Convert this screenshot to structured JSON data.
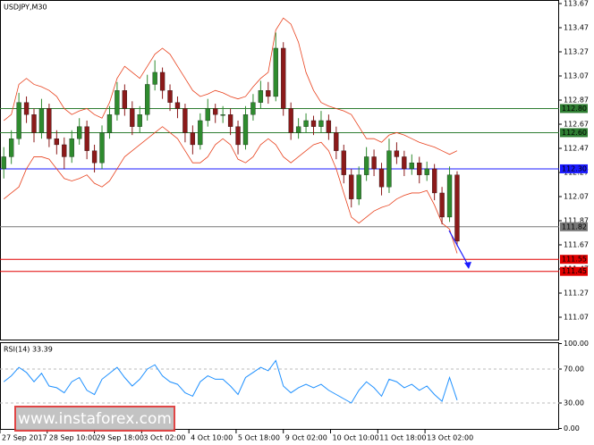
{
  "chart_data": {
    "type": "candlestick",
    "title": "USDJPY,M30",
    "up_color": "#2e8b2e",
    "down_color": "#8b1a1a",
    "band_color": "#e8401c",
    "xlim": [
      0,
      74
    ],
    "xticks": [
      {
        "value": 0,
        "label": "27 Sep 2017"
      },
      {
        "value": 6.25,
        "label": "28 Sep 10:00"
      },
      {
        "value": 12.5,
        "label": "29 Sep 18:00"
      },
      {
        "value": 18.75,
        "label": "3 Oct 02:00"
      },
      {
        "value": 25,
        "label": "4 Oct 10:00"
      },
      {
        "value": 31.25,
        "label": "5 Oct 18:00"
      },
      {
        "value": 37.5,
        "label": "9 Oct 02:00"
      },
      {
        "value": 43.75,
        "label": "10 Oct 10:00"
      },
      {
        "value": 50,
        "label": "11 Oct 18:00"
      },
      {
        "value": 56.25,
        "label": "13 Oct 02:00"
      }
    ],
    "ylim": [
      111.07,
      113.67
    ],
    "yticks": [
      113.67,
      113.47,
      113.27,
      113.07,
      112.87,
      112.67,
      112.47,
      112.27,
      112.07,
      111.87,
      111.67,
      111.47,
      111.27,
      111.07
    ],
    "levels": [
      {
        "value": 112.8,
        "label": "112.80",
        "color": "#2e7d32"
      },
      {
        "value": 112.6,
        "label": "112.60",
        "color": "#2e7d32"
      },
      {
        "value": 112.3,
        "label": "112.30",
        "color": "#1a1aff"
      },
      {
        "value": 111.82,
        "label": "111.82",
        "color": "#777777"
      },
      {
        "value": 111.55,
        "label": "111.55",
        "color": "#e00000"
      },
      {
        "value": 111.45,
        "label": "111.45",
        "color": "#e00000"
      }
    ],
    "candles": [
      [
        112.3,
        112.48,
        112.22,
        112.4
      ],
      [
        112.4,
        112.62,
        112.34,
        112.55
      ],
      [
        112.55,
        112.93,
        112.5,
        112.85
      ],
      [
        112.85,
        112.9,
        112.68,
        112.75
      ],
      [
        112.75,
        112.8,
        112.52,
        112.6
      ],
      [
        112.6,
        112.88,
        112.55,
        112.8
      ],
      [
        112.8,
        112.84,
        112.48,
        112.55
      ],
      [
        112.55,
        112.62,
        112.42,
        112.5
      ],
      [
        112.5,
        112.56,
        112.3,
        112.4
      ],
      [
        112.4,
        112.62,
        112.35,
        112.55
      ],
      [
        112.55,
        112.72,
        112.5,
        112.65
      ],
      [
        112.65,
        112.7,
        112.38,
        112.45
      ],
      [
        112.45,
        112.5,
        112.27,
        112.35
      ],
      [
        112.35,
        112.66,
        112.3,
        112.6
      ],
      [
        112.6,
        112.82,
        112.55,
        112.75
      ],
      [
        112.75,
        113.02,
        112.7,
        112.95
      ],
      [
        112.95,
        113.0,
        112.74,
        112.8
      ],
      [
        112.8,
        112.86,
        112.58,
        112.65
      ],
      [
        112.65,
        112.82,
        112.6,
        112.75
      ],
      [
        112.75,
        113.08,
        112.7,
        113.0
      ],
      [
        113.0,
        113.2,
        112.95,
        113.1
      ],
      [
        113.1,
        113.14,
        112.88,
        112.95
      ],
      [
        112.95,
        113.0,
        112.78,
        112.85
      ],
      [
        112.85,
        112.9,
        112.72,
        112.8
      ],
      [
        112.8,
        112.84,
        112.52,
        112.6
      ],
      [
        112.6,
        112.66,
        112.42,
        112.5
      ],
      [
        112.5,
        112.76,
        112.46,
        112.7
      ],
      [
        112.7,
        112.88,
        112.65,
        112.8
      ],
      [
        112.8,
        112.84,
        112.68,
        112.75
      ],
      [
        112.75,
        112.82,
        112.68,
        112.75
      ],
      [
        112.75,
        112.8,
        112.58,
        112.65
      ],
      [
        112.65,
        112.7,
        112.42,
        112.5
      ],
      [
        112.5,
        112.82,
        112.46,
        112.75
      ],
      [
        112.75,
        112.92,
        112.7,
        112.85
      ],
      [
        112.85,
        113.03,
        112.8,
        112.95
      ],
      [
        112.95,
        113.02,
        112.84,
        112.9
      ],
      [
        112.9,
        113.43,
        112.86,
        113.3
      ],
      [
        113.3,
        113.35,
        112.74,
        112.8
      ],
      [
        112.8,
        112.85,
        112.54,
        112.6
      ],
      [
        112.6,
        112.72,
        112.55,
        112.65
      ],
      [
        112.65,
        112.76,
        112.6,
        112.7
      ],
      [
        112.7,
        112.74,
        112.58,
        112.65
      ],
      [
        112.65,
        112.78,
        112.6,
        112.7
      ],
      [
        112.7,
        112.75,
        112.54,
        112.6
      ],
      [
        112.6,
        112.65,
        112.38,
        112.45
      ],
      [
        112.45,
        112.5,
        112.18,
        112.25
      ],
      [
        112.25,
        112.3,
        111.98,
        112.05
      ],
      [
        112.05,
        112.32,
        112.0,
        112.25
      ],
      [
        112.25,
        112.48,
        112.2,
        112.4
      ],
      [
        112.4,
        112.46,
        112.24,
        112.3
      ],
      [
        112.3,
        112.35,
        112.08,
        112.15
      ],
      [
        112.15,
        112.55,
        112.1,
        112.45
      ],
      [
        112.45,
        112.52,
        112.34,
        112.4
      ],
      [
        112.4,
        112.45,
        112.24,
        112.3
      ],
      [
        112.3,
        112.42,
        112.25,
        112.35
      ],
      [
        112.35,
        112.4,
        112.18,
        112.25
      ],
      [
        112.25,
        112.36,
        112.2,
        112.3
      ],
      [
        112.3,
        112.34,
        112.04,
        112.1
      ],
      [
        112.1,
        112.15,
        111.84,
        111.9
      ],
      [
        111.9,
        112.32,
        111.86,
        112.25
      ],
      [
        112.25,
        112.28,
        111.66,
        111.7
      ]
    ],
    "bollinger_upper": [
      112.7,
      112.75,
      113.0,
      113.05,
      113.0,
      112.98,
      112.95,
      112.9,
      112.8,
      112.75,
      112.78,
      112.8,
      112.75,
      112.72,
      112.85,
      113.05,
      113.15,
      113.1,
      113.05,
      113.15,
      113.25,
      113.3,
      113.25,
      113.15,
      113.05,
      112.95,
      112.9,
      112.92,
      112.95,
      112.93,
      112.9,
      112.88,
      112.9,
      112.98,
      113.05,
      113.1,
      113.45,
      113.55,
      113.5,
      113.35,
      113.1,
      112.95,
      112.85,
      112.82,
      112.8,
      112.78,
      112.75,
      112.65,
      112.55,
      112.55,
      112.52,
      112.58,
      112.6,
      112.58,
      112.55,
      112.52,
      112.5,
      112.48,
      112.45,
      112.42,
      112.45
    ],
    "bollinger_lower": [
      112.05,
      112.1,
      112.15,
      112.3,
      112.4,
      112.4,
      112.38,
      112.3,
      112.22,
      112.2,
      112.22,
      112.25,
      112.18,
      112.15,
      112.2,
      112.3,
      112.4,
      112.45,
      112.5,
      112.55,
      112.6,
      112.65,
      112.6,
      112.55,
      112.45,
      112.35,
      112.35,
      112.4,
      112.5,
      112.55,
      112.5,
      112.38,
      112.35,
      112.4,
      112.5,
      112.55,
      112.5,
      112.4,
      112.35,
      112.4,
      112.45,
      112.5,
      112.52,
      112.45,
      112.3,
      112.1,
      111.9,
      111.85,
      111.9,
      111.95,
      111.98,
      112.0,
      112.05,
      112.08,
      112.1,
      112.1,
      112.12,
      112.0,
      111.85,
      111.8,
      111.6
    ],
    "rsi": {
      "title": "RSI(14) 33.39",
      "color": "#1e90ff",
      "ylim": [
        0,
        100
      ],
      "yticks": [
        {
          "value": 100,
          "label": "100.00"
        },
        {
          "value": 70,
          "label": "70.00"
        },
        {
          "value": 30,
          "label": "30.00"
        },
        {
          "value": 0,
          "label": "0.00"
        }
      ],
      "values": [
        55,
        62,
        72,
        66,
        55,
        65,
        50,
        48,
        42,
        55,
        60,
        45,
        40,
        58,
        65,
        72,
        60,
        50,
        58,
        70,
        75,
        62,
        55,
        52,
        42,
        38,
        55,
        62,
        58,
        58,
        50,
        40,
        60,
        66,
        72,
        68,
        80,
        50,
        42,
        48,
        52,
        48,
        52,
        45,
        40,
        35,
        30,
        45,
        55,
        48,
        38,
        58,
        55,
        48,
        52,
        45,
        50,
        40,
        32,
        60,
        33.39
      ]
    },
    "watermark": "[ www.instaforex.com ]"
  }
}
